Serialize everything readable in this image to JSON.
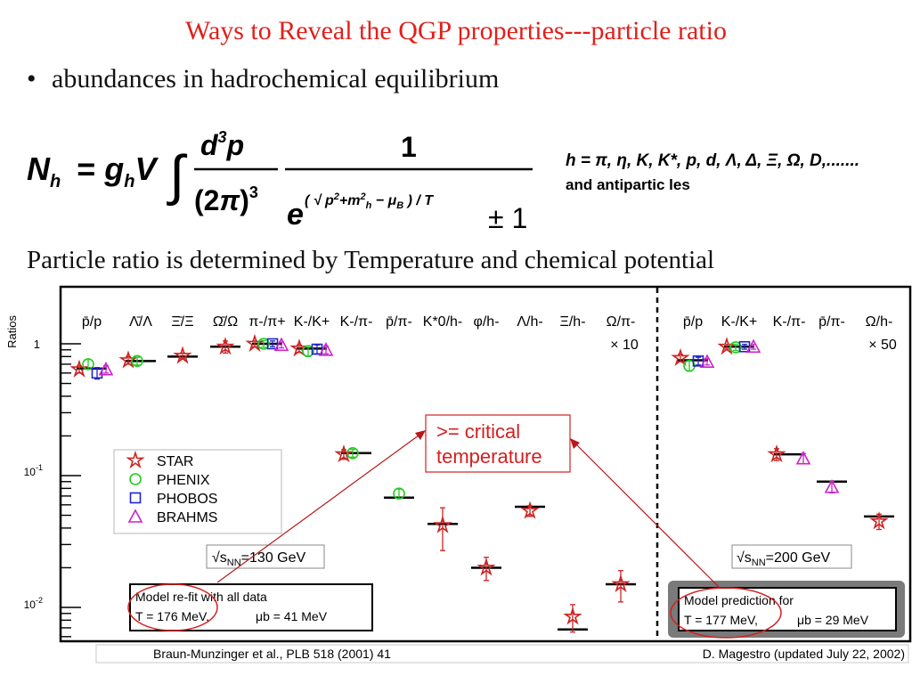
{
  "slide": {
    "title": "Ways to Reveal the QGP properties---particle ratio",
    "bullet": "abundances in hadrochemical equilibrium",
    "formula_species": "h = π, η, K, K*, p, d, Λ, Δ, Ξ, Ω, D,.......",
    "formula_antiparticles": "and antipartic les",
    "ratio_statement": "Particle ratio is determined by Temperature and chemical potential"
  },
  "formula": {
    "lhs": "Nh = ghV",
    "integrand_num": "d3p",
    "integrand_den": "(2π)3",
    "dist_num": "1",
    "dist_den_exp": "(√(p2+mh2) − μB) / T",
    "dist_den_tail": "± 1"
  },
  "chart_data": {
    "type": "scatter",
    "ylabel": "Ratios",
    "yscale": "log",
    "ylim": [
      0.005,
      1.7
    ],
    "ytick_labels": [
      "1",
      "10-1",
      "10-2"
    ],
    "panels": [
      {
        "name": "130 GeV",
        "energy_label": "√sNN=130 GeV",
        "categories": [
          "p̄/p",
          "Λ̄/Λ",
          "Ξ̄/Ξ",
          "Ω̄/Ω",
          "π-/π+",
          "K-/K+",
          "K-/π-",
          "p̄/π-",
          "K*0/h-",
          "φ/h-",
          "Λ/h-",
          "Ξ/h-",
          "Ω/π- × 10"
        ],
        "model_values": [
          0.65,
          0.74,
          0.8,
          0.95,
          1.0,
          0.92,
          0.148,
          0.068,
          0.043,
          0.02,
          0.058,
          0.0068,
          0.015
        ],
        "series": [
          {
            "name": "STAR",
            "marker": "star",
            "color": "#cc2222",
            "values": [
              0.64,
              0.75,
              0.81,
              0.95,
              1.0,
              0.92,
              0.145,
              null,
              0.042,
              0.02,
              0.054,
              0.0085,
              0.015
            ],
            "err": [
              0.04,
              0.05,
              0.04,
              0.1,
              0.05,
              0.06,
              0.012,
              null,
              0.015,
              0.004,
              0.005,
              0.002,
              0.004
            ]
          },
          {
            "name": "PHENIX",
            "marker": "circle",
            "color": "#22cc22",
            "values": [
              0.7,
              0.74,
              null,
              null,
              1.0,
              0.88,
              0.148,
              0.073,
              null,
              null,
              null,
              null,
              null
            ],
            "err": [
              0.06,
              0.05,
              null,
              null,
              0.06,
              0.08,
              0.01,
              0.006,
              null,
              null,
              null,
              null,
              null
            ]
          },
          {
            "name": "PHOBOS",
            "marker": "square",
            "color": "#2222cc",
            "values": [
              0.6,
              null,
              null,
              null,
              1.0,
              0.91,
              null,
              null,
              null,
              null,
              null,
              null,
              null
            ],
            "err": [
              0.06,
              null,
              null,
              null,
              0.05,
              0.07,
              null,
              null,
              null,
              null,
              null,
              null,
              null
            ]
          },
          {
            "name": "BRAHMS",
            "marker": "triangle",
            "color": "#cc22cc",
            "values": [
              0.64,
              null,
              null,
              null,
              0.98,
              0.9,
              null,
              null,
              null,
              null,
              null,
              null,
              null
            ],
            "err": [
              0.04,
              null,
              null,
              null,
              0.05,
              0.06,
              null,
              null,
              null,
              null,
              null,
              null,
              null
            ]
          }
        ],
        "model_box": {
          "line1": "Model re-fit with all data",
          "line2": "T = 176 MeV,",
          "line3": "μb = 41 MeV"
        }
      },
      {
        "name": "200 GeV",
        "energy_label": "√sNN=200 GeV",
        "categories": [
          "p̄/p",
          "K-/K+",
          "K-/π-",
          "p̄/π-",
          "Ω/h- × 50"
        ],
        "model_values": [
          0.75,
          0.95,
          0.145,
          0.09,
          0.049
        ],
        "series": [
          {
            "name": "STAR",
            "marker": "star",
            "color": "#cc2222",
            "values": [
              0.78,
              0.95,
              0.145,
              null,
              0.045
            ],
            "err": [
              0.05,
              0.04,
              0.015,
              null,
              0.006
            ]
          },
          {
            "name": "PHENIX",
            "marker": "circle",
            "color": "#22cc22",
            "values": [
              0.68,
              0.94,
              null,
              null,
              null
            ],
            "err": [
              0.06,
              0.05,
              null,
              null,
              null
            ]
          },
          {
            "name": "PHOBOS",
            "marker": "square",
            "color": "#2222cc",
            "values": [
              0.74,
              0.95,
              null,
              null,
              null
            ],
            "err": [
              0.05,
              0.04,
              null,
              null,
              null
            ]
          },
          {
            "name": "BRAHMS",
            "marker": "triangle",
            "color": "#cc22cc",
            "values": [
              0.73,
              0.95,
              0.135,
              0.082,
              null
            ],
            "err": [
              0.04,
              0.04,
              0.012,
              0.008,
              null
            ]
          }
        ],
        "model_box": {
          "line1": "Model prediction for",
          "line2": "T = 177 MeV,",
          "line3": "μb = 29 MeV"
        }
      }
    ],
    "legend": [
      "STAR",
      "PHENIX",
      "PHOBOS",
      "BRAHMS"
    ],
    "legend_placement": "middle-left",
    "callout": ">= critical temperature",
    "callout_line1": ">= critical",
    "callout_line2": "temperature",
    "citation_left": "Braun-Munzinger et al., PLB 518 (2001) 41",
    "citation_right": "D. Magestro (updated July 22, 2002)"
  },
  "colors": {
    "title": "#e0201c",
    "callout": "#d42020",
    "star": "#cc2222",
    "phenix": "#22cc22",
    "phobos": "#2222cc",
    "brahms": "#cc22cc"
  }
}
